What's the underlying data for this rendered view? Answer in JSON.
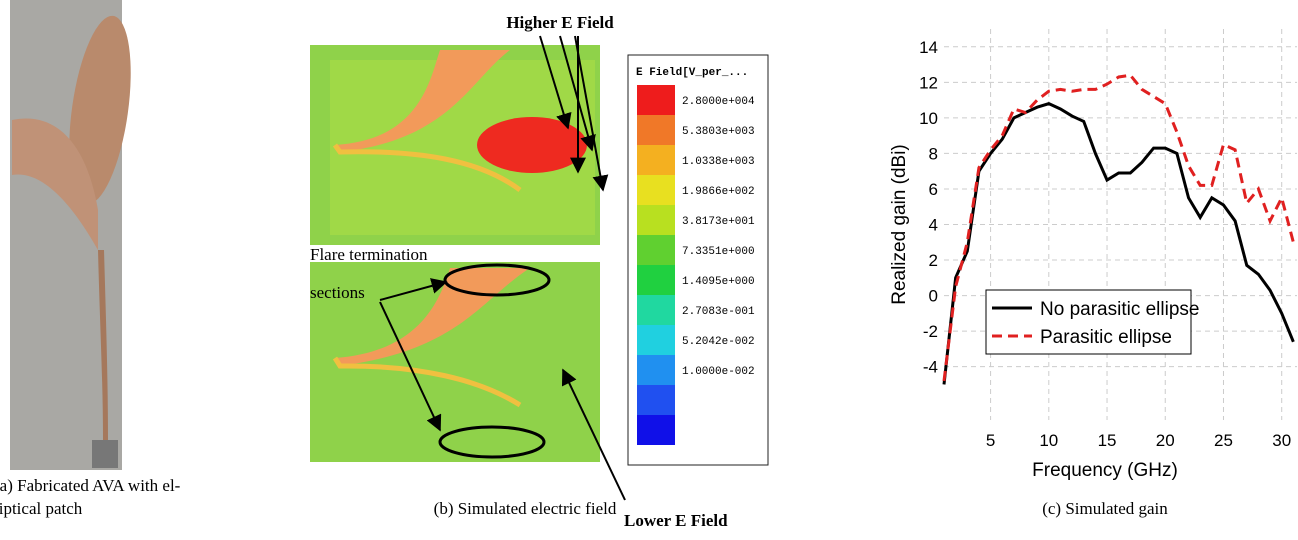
{
  "panel_a": {
    "caption": [
      "(a) Fabricated AVA with el-",
      "liptical patch"
    ]
  },
  "panel_b": {
    "caption": "(b) Simulated electric field",
    "higher_label": "Higher E Field",
    "lower_label": "Lower E Field",
    "flare_label": [
      "Flare termination",
      "sections"
    ],
    "colorbar_title": "E Field[V_per_...",
    "colorbar_labels": [
      "2.8000e+004",
      "5.3803e+003",
      "1.0338e+003",
      "1.9866e+002",
      "3.8173e+001",
      "7.3351e+000",
      "1.4095e+000",
      "2.7083e-001",
      "5.2042e-002",
      "1.0000e-002"
    ]
  },
  "panel_c": {
    "caption": "(c) Simulated gain"
  },
  "chart_data": {
    "type": "line",
    "x_label": "Frequency (GHz)",
    "y_label": "Realized gain (dBi)",
    "x": [
      1,
      2,
      3,
      4,
      5,
      6,
      7,
      8,
      9,
      10,
      11,
      12,
      13,
      14,
      15,
      16,
      17,
      18,
      19,
      20,
      21,
      22,
      23,
      24,
      25,
      26,
      27,
      28,
      29,
      30,
      31
    ],
    "series": [
      {
        "name": "No parasitic ellipse",
        "color": "#000000",
        "dash": "solid",
        "values": [
          -5,
          1,
          2.5,
          7,
          8,
          8.8,
          10,
          10.3,
          10.6,
          10.8,
          10.5,
          10.1,
          9.8,
          8,
          6.5,
          6.9,
          6.9,
          7.5,
          8.3,
          8.3,
          8,
          5.5,
          4.4,
          5.5,
          5.1,
          4.2,
          1.7,
          1.2,
          0.3,
          -1,
          -2.6
        ]
      },
      {
        "name": "Parasitic ellipse",
        "color": "#e02020",
        "dash": "dashed",
        "values": [
          -4.8,
          0.5,
          3,
          7.2,
          8.2,
          9,
          10.5,
          10.3,
          11,
          11.5,
          11.6,
          11.5,
          11.6,
          11.6,
          11.9,
          12.3,
          12.4,
          11.6,
          11.2,
          10.8,
          9.2,
          7.3,
          6.2,
          6.2,
          8.5,
          8.2,
          5.2,
          6,
          4.2,
          5.5,
          3
        ]
      }
    ],
    "xlim": [
      1,
      32
    ],
    "ylim": [
      -7,
      15
    ],
    "xticks": [
      5,
      10,
      15,
      20,
      25,
      30
    ],
    "yticks": [
      -4,
      -2,
      0,
      2,
      4,
      6,
      8,
      10,
      12,
      14
    ],
    "grid": true,
    "legend": "lower left"
  }
}
